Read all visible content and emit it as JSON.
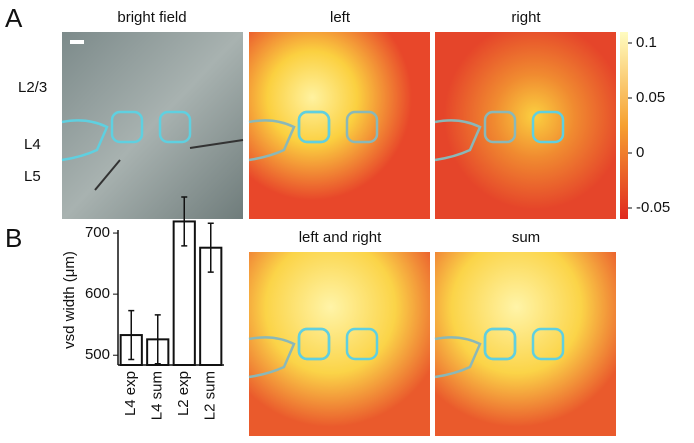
{
  "figure": {
    "panel_labels": [
      "A",
      "B"
    ],
    "layer_labels": [
      "L2/3",
      "L4",
      "L5"
    ],
    "image_titles": [
      "bright field",
      "left",
      "right",
      "left and right",
      "sum"
    ],
    "colorbar": {
      "lim": [
        -0.06,
        0.11
      ],
      "ticks": [
        0.1,
        0.05,
        0,
        -0.05
      ]
    }
  },
  "chart_data": {
    "type": "bar",
    "ylabel": "vsd width (μm)",
    "categories": [
      "L4 exp",
      "L4 sum",
      "L2 exp",
      "L2 sum"
    ],
    "values": [
      533,
      526,
      719,
      676
    ],
    "errors": [
      40,
      40,
      40,
      40
    ],
    "color": "#ffffff",
    "ylim": [
      484,
      705
    ],
    "yticks": [
      500,
      600,
      700
    ]
  }
}
